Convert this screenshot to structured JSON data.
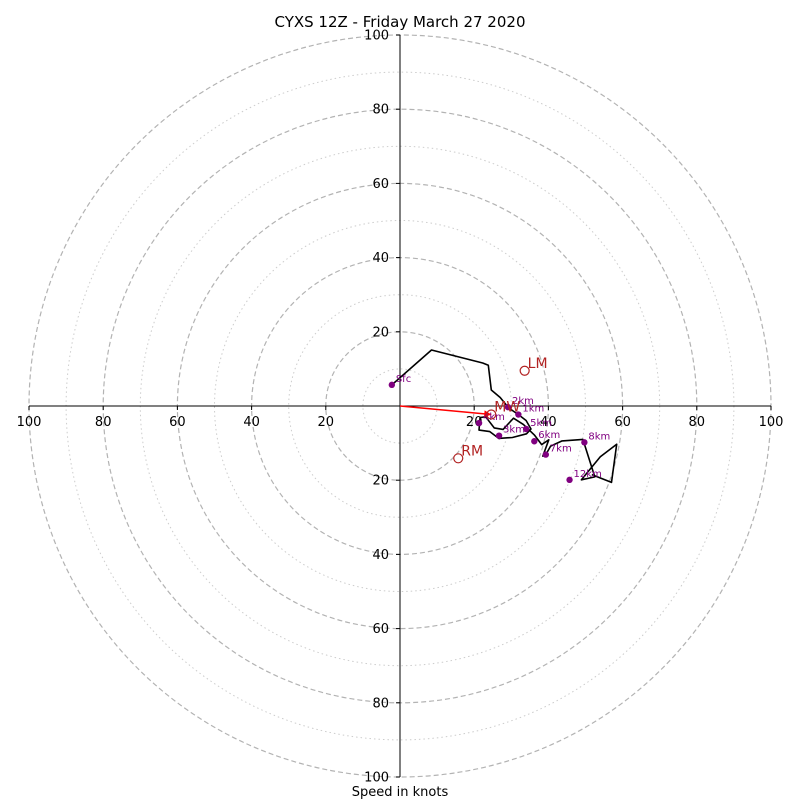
{
  "chart_data": {
    "type": "line",
    "title": "CYXS 12Z - Friday March 27 2020",
    "xlabel": "Speed in knots",
    "xlim": [
      -100,
      100
    ],
    "ylim": [
      -100,
      100
    ],
    "ring_major": [
      20,
      40,
      60,
      80,
      100
    ],
    "ring_minor": [
      10,
      30,
      50,
      70,
      90
    ],
    "x_ticks": [
      {
        "v": -100,
        "label": "100"
      },
      {
        "v": -80,
        "label": "80"
      },
      {
        "v": -60,
        "label": "60"
      },
      {
        "v": -40,
        "label": "40"
      },
      {
        "v": -20,
        "label": "20"
      },
      {
        "v": 20,
        "label": "20"
      },
      {
        "v": 40,
        "label": "40"
      },
      {
        "v": 60,
        "label": "60"
      },
      {
        "v": 80,
        "label": "80"
      },
      {
        "v": 100,
        "label": "100"
      }
    ],
    "y_ticks": [
      {
        "v": 100,
        "label": "100"
      },
      {
        "v": 80,
        "label": "80"
      },
      {
        "v": 60,
        "label": "60"
      },
      {
        "v": 40,
        "label": "40"
      },
      {
        "v": 20,
        "label": "20"
      },
      {
        "v": -20,
        "label": "20"
      },
      {
        "v": -40,
        "label": "40"
      },
      {
        "v": -60,
        "label": "60"
      },
      {
        "v": -80,
        "label": "80"
      },
      {
        "v": -100,
        "label": "100"
      }
    ],
    "series": [
      {
        "color": "#000000",
        "x": [
          -2.2,
          8.5,
          22.3,
          23.8,
          24.6,
          27.0,
          29.1,
          30.3,
          31.9,
          34.0,
          35.3,
          34.1,
          30.3,
          27.0,
          26.7,
          24.2,
          21.3,
          21.6,
          23.1,
          25.4,
          27.8,
          30.6,
          33.3,
          36.2,
          38.2,
          40.1,
          38.5,
          39.3,
          40.6,
          43.7,
          49.3,
          52.5,
          48.9,
          54.0,
          58.4,
          57.0,
          51.7
        ],
        "y": [
          5.7,
          15.1,
          11.6,
          11.0,
          4.3,
          2.3,
          -0.3,
          -1.2,
          -2.3,
          -3.9,
          -6.2,
          -7.5,
          -8.5,
          -8.7,
          -8.8,
          -6.9,
          -6.5,
          -3.1,
          -2.9,
          -5.9,
          -6.3,
          -3.3,
          -5.0,
          -7.8,
          -10.4,
          -9.1,
          -13.5,
          -13.1,
          -10.8,
          -9.4,
          -9.0,
          -19.1,
          -19.9,
          -13.7,
          -10.3,
          -20.6,
          -18.5
        ]
      }
    ],
    "height_markers": [
      {
        "label": "Sfc",
        "x": -2.2,
        "y": 5.7
      },
      {
        "label": "1km",
        "x": 31.9,
        "y": -2.3
      },
      {
        "label": "2km",
        "x": 29.1,
        "y": -0.3
      },
      {
        "label": "3km",
        "x": 26.7,
        "y": -8.0
      },
      {
        "label": "4km",
        "x": 21.3,
        "y": -4.6
      },
      {
        "label": "5km",
        "x": 34.0,
        "y": -6.2
      },
      {
        "label": "6km",
        "x": 36.2,
        "y": -9.5
      },
      {
        "label": "7km",
        "x": 39.3,
        "y": -13.1
      },
      {
        "label": "8km",
        "x": 49.7,
        "y": -9.8
      },
      {
        "label": "12km",
        "x": 45.7,
        "y": -19.9
      }
    ],
    "motion_markers": [
      {
        "label": "LM",
        "x": 33.6,
        "y": 9.5
      },
      {
        "label": "RM",
        "x": 15.7,
        "y": -14.1
      },
      {
        "label": "MW",
        "x": 24.6,
        "y": -2.3
      }
    ],
    "arrow": {
      "x0": 0,
      "y0": 0,
      "x1": 24.6,
      "y1": -2.3
    },
    "colors": {
      "profile": "#000000",
      "height_dot": "#800080",
      "motion": "#b22222",
      "arrow": "#ff0000",
      "ring_major": "#b3b3b3",
      "ring_minor": "#cccccc"
    }
  }
}
